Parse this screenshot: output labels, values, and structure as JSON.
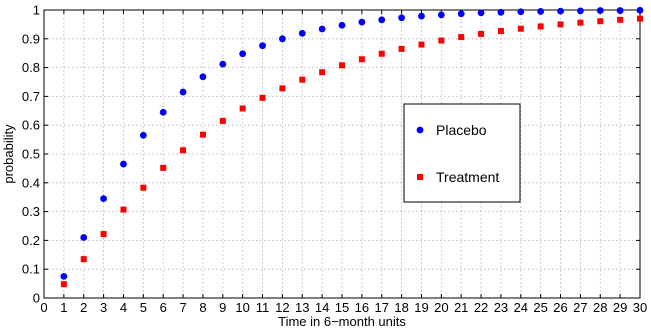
{
  "chart_data": {
    "type": "scatter",
    "xlabel": "Time in 6−month units",
    "ylabel": "probability",
    "xlim": [
      0,
      30
    ],
    "ylim": [
      0,
      1
    ],
    "xticks": [
      0,
      1,
      2,
      3,
      4,
      5,
      6,
      7,
      8,
      9,
      10,
      11,
      12,
      13,
      14,
      15,
      16,
      17,
      18,
      19,
      20,
      21,
      22,
      23,
      24,
      25,
      26,
      27,
      28,
      29,
      30
    ],
    "yticks": [
      0,
      0.1,
      0.2,
      0.3,
      0.4,
      0.5,
      0.6,
      0.7,
      0.8,
      0.9,
      1
    ],
    "ytick_labels": [
      "0",
      "0.1",
      "0.2",
      "0.3",
      "0.4",
      "0.5",
      "0.6",
      "0.7",
      "0.8",
      "0.9",
      "1"
    ],
    "grid": true,
    "legend_position": "center-right",
    "x": [
      1,
      2,
      3,
      4,
      5,
      6,
      7,
      8,
      9,
      10,
      11,
      12,
      13,
      14,
      15,
      16,
      17,
      18,
      19,
      20,
      21,
      22,
      23,
      24,
      25,
      26,
      27,
      28,
      29,
      30
    ],
    "series": [
      {
        "name": "Placebo",
        "marker": "circle",
        "color": "#0000ff",
        "values": [
          0.075,
          0.21,
          0.345,
          0.465,
          0.565,
          0.645,
          0.715,
          0.768,
          0.812,
          0.848,
          0.876,
          0.9,
          0.919,
          0.934,
          0.947,
          0.958,
          0.966,
          0.973,
          0.979,
          0.983,
          0.987,
          0.99,
          0.992,
          0.994,
          0.995,
          0.996,
          0.997,
          0.998,
          0.998,
          0.999
        ]
      },
      {
        "name": "Treatment",
        "marker": "square",
        "color": "#ff0000",
        "values": [
          0.048,
          0.135,
          0.222,
          0.307,
          0.383,
          0.452,
          0.513,
          0.567,
          0.615,
          0.658,
          0.695,
          0.728,
          0.758,
          0.784,
          0.808,
          0.829,
          0.848,
          0.865,
          0.88,
          0.894,
          0.906,
          0.917,
          0.927,
          0.935,
          0.943,
          0.95,
          0.956,
          0.961,
          0.966,
          0.97
        ]
      }
    ]
  }
}
